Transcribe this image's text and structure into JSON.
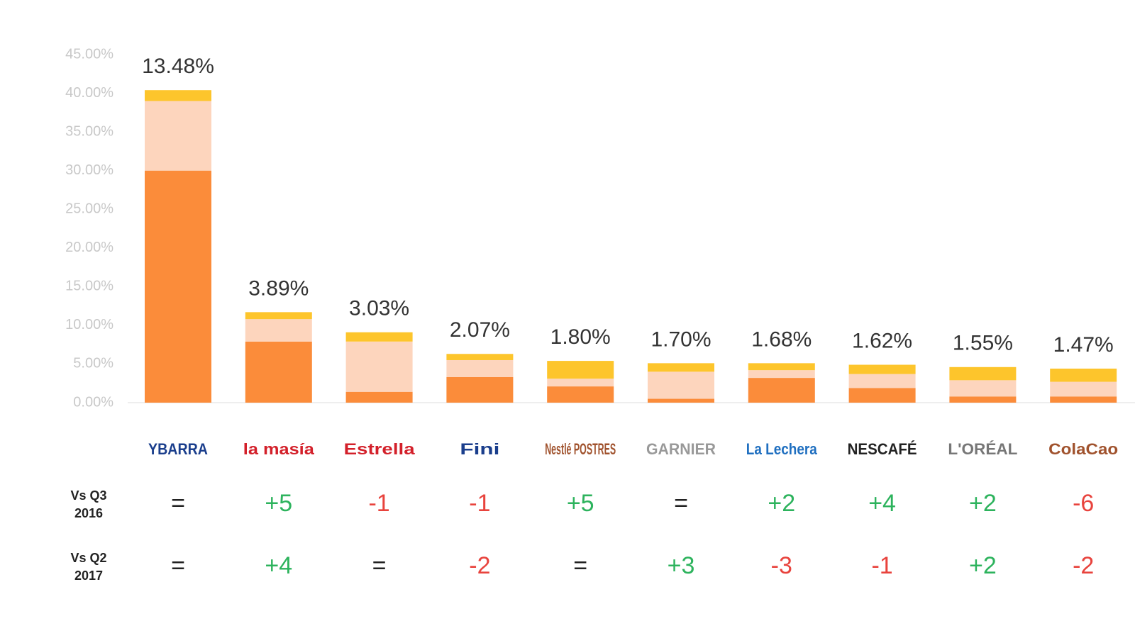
{
  "chart_data": {
    "type": "stacked_bar",
    "categories": [
      "YBARRA",
      "la masía",
      "Estrella",
      "Fini",
      "Nestlé POSTRES",
      "GARNIER",
      "La Lechera",
      "NESCAFÉ",
      "L'ORÉAL",
      "ColaCao"
    ],
    "series": [
      {
        "color": "#fb8c3a",
        "values": [
          30,
          7.9,
          1.4,
          3.3,
          2.1,
          0.5,
          3.2,
          1.9,
          0.8,
          0.8
        ]
      },
      {
        "color": "#fdd5bd",
        "values": [
          9,
          2.9,
          6.5,
          2.2,
          1.0,
          3.5,
          1.0,
          1.8,
          2.1,
          1.9
        ]
      },
      {
        "color": "#fdc52c",
        "values": [
          1.4,
          0.9,
          1.2,
          0.8,
          2.3,
          1.1,
          0.9,
          1.2,
          1.7,
          1.7
        ]
      }
    ],
    "bar_labels": [
      "13.48%",
      "3.89%",
      "3.03%",
      "2.07%",
      "1.80%",
      "1.70%",
      "1.68%",
      "1.62%",
      "1.55%",
      "1.47%"
    ],
    "ylim": [
      0,
      45
    ],
    "yticks": [
      {
        "value": 0,
        "label": "0.00%"
      },
      {
        "value": 5,
        "label": "5.00%"
      },
      {
        "value": 10,
        "label": "10.00%"
      },
      {
        "value": 15,
        "label": "15.00%"
      },
      {
        "value": 20,
        "label": "20.00%"
      },
      {
        "value": 25,
        "label": "25.00%"
      },
      {
        "value": 30,
        "label": "30.00%"
      },
      {
        "value": 35,
        "label": "35.00%"
      },
      {
        "value": 40,
        "label": "40.00%"
      },
      {
        "value": 45,
        "label": "45.00%"
      }
    ],
    "grid": false,
    "up_color": "#2db35d",
    "down_color": "#e8433d",
    "even_color": "#222",
    "rows": [
      {
        "label": "Vs Q3 2016",
        "cells": [
          "=",
          "+5",
          "-1",
          "-1",
          "+5",
          "=",
          "+2",
          "+4",
          "+2",
          "-6"
        ]
      },
      {
        "label": "Vs Q2 2017",
        "cells": [
          "=",
          "+4",
          "=",
          "-2",
          "=",
          "+3",
          "-3",
          "-1",
          "+2",
          "-2"
        ]
      }
    ]
  }
}
